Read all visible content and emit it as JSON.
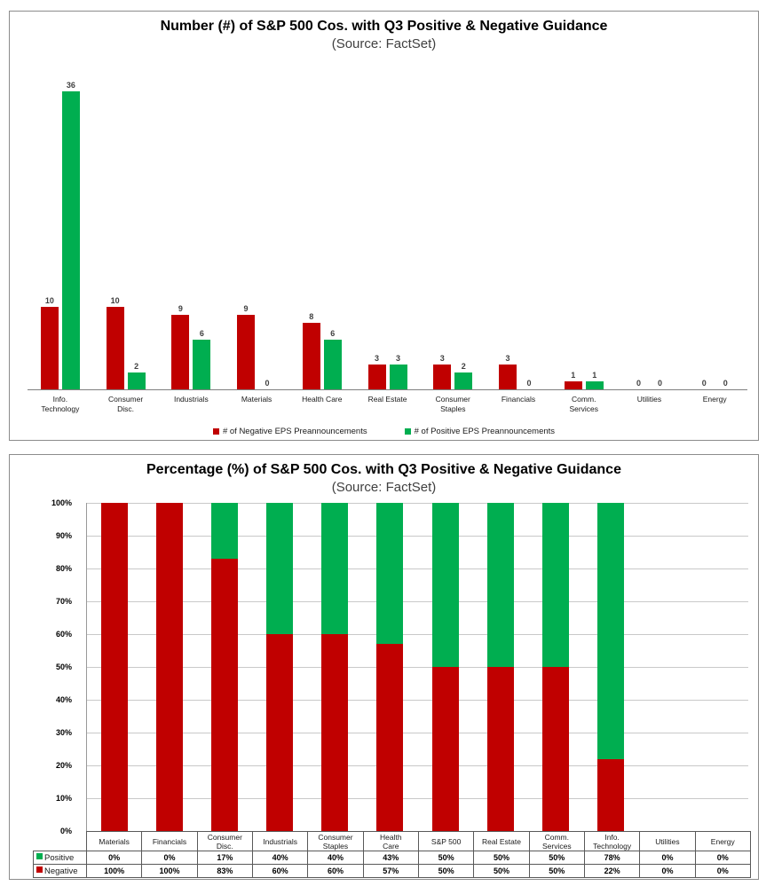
{
  "colors": {
    "negative": "#C00000",
    "positive": "#00AE50",
    "gridline": "#C9C9C9",
    "axis": "#7f7f7f",
    "table_border": "#595959",
    "subtitle_text": "#404040"
  },
  "chart_data": [
    {
      "type": "bar",
      "title": "Number (#) of S&P 500 Cos. with Q3 Positive & Negative Guidance",
      "subtitle": "(Source: FactSet)",
      "categories": [
        "Info.|Technology",
        "Consumer|Disc.",
        "Industrials",
        "Materials",
        "Health Care",
        "Real Estate",
        "Consumer|Staples",
        "Financials",
        "Comm.|Services",
        "Utilities",
        "Energy"
      ],
      "series": [
        {
          "name": "# of Negative EPS Preannouncements",
          "color": "#C00000",
          "values": [
            10,
            10,
            9,
            9,
            8,
            3,
            3,
            3,
            1,
            0,
            0
          ]
        },
        {
          "name": "# of Positive EPS Preannouncements",
          "color": "#00AE50",
          "values": [
            36,
            2,
            6,
            0,
            6,
            3,
            2,
            0,
            1,
            0,
            0
          ]
        }
      ],
      "ylim": [
        0,
        36
      ],
      "grid": false,
      "data_labels": true,
      "legend_position": "bottom"
    },
    {
      "type": "bar",
      "stacked": true,
      "stacked_percent": true,
      "title": "Percentage (%) of S&P 500 Cos. with Q3 Positive & Negative Guidance",
      "subtitle": "(Source: FactSet)",
      "categories": [
        "Materials",
        "Financials",
        "Consumer|Disc.",
        "Industrials",
        "Consumer|Staples",
        "Health|Care",
        "S&P 500",
        "Real Estate",
        "Comm.|Services",
        "Info.|Technology",
        "Utilities",
        "Energy"
      ],
      "series": [
        {
          "name": "Positive",
          "color": "#00AE50",
          "values": [
            0,
            0,
            17,
            40,
            40,
            43,
            50,
            50,
            50,
            78,
            0,
            0
          ]
        },
        {
          "name": "Negative",
          "color": "#C00000",
          "values": [
            100,
            100,
            83,
            60,
            60,
            57,
            50,
            50,
            50,
            22,
            0,
            0
          ]
        }
      ],
      "value_suffix": "%",
      "ylabel_ticks": [
        "0%",
        "10%",
        "20%",
        "30%",
        "40%",
        "50%",
        "60%",
        "70%",
        "80%",
        "90%",
        "100%"
      ],
      "ylim": [
        0,
        100
      ],
      "grid": true,
      "data_table": true,
      "legend_position": "data-table-left"
    }
  ]
}
